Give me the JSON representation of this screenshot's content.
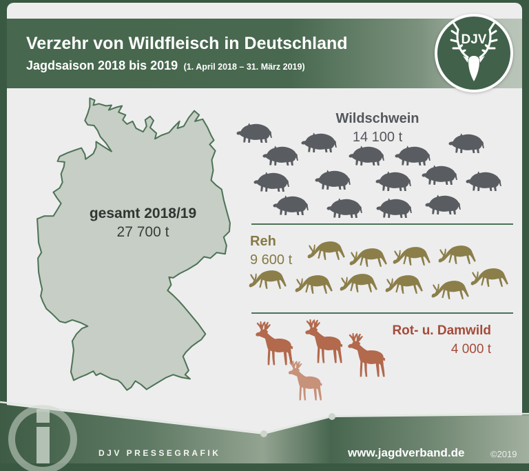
{
  "header": {
    "title": "Verzehr von Wildfleisch in Deutschland",
    "subtitle": "Jagdsaison 2018 bis 2019",
    "subtitle_detail": "(1. April 2018 – 31. März 2019)",
    "logo_text": "DJV"
  },
  "map": {
    "region": "Deutschland",
    "total_label": "gesamt 2018/19",
    "total_value": "27 700 t"
  },
  "chart_data": {
    "type": "pictogram",
    "title": "Verzehr von Wildfleisch in Deutschland",
    "period": "Jagdsaison 2018 bis 2019 (1. April 2018 – 31. März 2019)",
    "total": {
      "label": "gesamt 2018/19",
      "tonnes": 27700,
      "display": "27 700 t"
    },
    "series": [
      {
        "name": "Wildschwein",
        "tonnes": 14100,
        "display": "14 100 t",
        "icon": "wild-boar",
        "icon_count": 15,
        "color": "#595c60"
      },
      {
        "name": "Reh",
        "tonnes": 9600,
        "display": "9 600 t",
        "icon": "roe-deer",
        "icon_count": 10,
        "color": "#8b7e49"
      },
      {
        "name": "Rot- u. Damwild",
        "tonnes": 4000,
        "display": "4 000 t",
        "icon": "stag",
        "icon_count": 4,
        "color": "#b2694c",
        "color_secondary": "#c7917a"
      }
    ]
  },
  "footer": {
    "credit": "DJV PRESSEGRAFIK",
    "website": "www.jagdverband.de",
    "copyright": "©2019"
  },
  "colors": {
    "frame_green": "#3a5942",
    "header_green": "#48684f",
    "panel_gray": "#ededee",
    "map_fill": "#c6cec5",
    "map_stroke": "#4d7355",
    "divider_green": "#4d7355"
  }
}
